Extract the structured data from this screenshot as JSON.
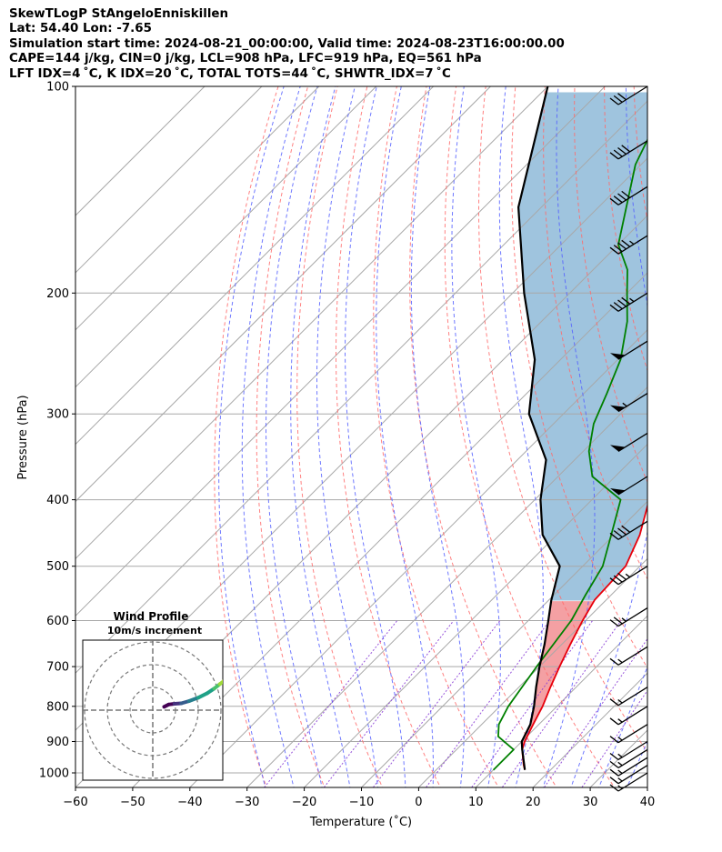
{
  "header": {
    "line1": "SkewTLogP StAngeloEnniskillen",
    "line2": "Lat: 54.40   Lon: -7.65",
    "line3": "Simulation start time: 2024-08-21_00:00:00, Valid time: 2024-08-23T16:00:00.00",
    "line4": "CAPE=144 j/kg, CIN=0 j/kg, LCL=908 hPa, LFC=919 hPa, EQ=561 hPa",
    "line5": "LFT IDX=4 ˚C, K IDX=20 ˚C, TOTAL TOTS=44 ˚C, SHWTR_IDX=7 ˚C"
  },
  "chart_data": {
    "type": "line",
    "chart_kind": "skew-T log-P diagram",
    "xlabel": "Temperature (˚C)",
    "ylabel": "Pressure (hPa)",
    "xlim": [
      -60,
      40
    ],
    "ylim": [
      1050,
      100
    ],
    "y_scale": "log",
    "x_ticks": [
      "−60",
      "−50",
      "−40",
      "−30",
      "−20",
      "−10",
      "0",
      "10",
      "20",
      "30",
      "40"
    ],
    "x_tick_values": [
      -60,
      -50,
      -40,
      -30,
      -20,
      -10,
      0,
      10,
      20,
      30,
      40
    ],
    "y_ticks": [
      1000,
      900,
      800,
      700,
      600,
      500,
      400,
      300,
      200,
      100
    ],
    "skew": 45,
    "grid": true,
    "colors": {
      "temperature": "#e8000b",
      "dewpoint": "#008000",
      "parcel": "#000000",
      "cape_fill": "#9fc4de",
      "cin_fill": "#f4a0a3",
      "dry_adiabat": "#ff6b6b",
      "moist_adiabat": "#5560ff",
      "mixing_ratio": "#8b3fd6",
      "isotherm": "#a8a8a8"
    },
    "series": [
      {
        "role": "temperature",
        "points": [
          [
            15.5,
            990
          ],
          [
            14.5,
            975
          ],
          [
            13.0,
            950
          ],
          [
            11.5,
            925
          ],
          [
            10.5,
            900
          ],
          [
            9.0,
            850
          ],
          [
            7.5,
            800
          ],
          [
            5.5,
            750
          ],
          [
            3.5,
            700
          ],
          [
            1.5,
            650
          ],
          [
            -0.5,
            600
          ],
          [
            -2.0,
            560
          ],
          [
            -2.5,
            500
          ],
          [
            -5.5,
            450
          ],
          [
            -10.0,
            400
          ],
          [
            -15.5,
            350
          ],
          [
            -21.0,
            300
          ],
          [
            -28.5,
            250
          ],
          [
            -36.0,
            210
          ],
          [
            -40.0,
            200
          ],
          [
            -44.0,
            185
          ],
          [
            -48.0,
            170
          ],
          [
            -53.0,
            150
          ],
          [
            -58.0,
            130
          ],
          [
            -63.0,
            115
          ],
          [
            -66.0,
            100
          ]
        ]
      },
      {
        "role": "dewpoint",
        "points": [
          [
            10.0,
            990
          ],
          [
            10.0,
            975
          ],
          [
            10.0,
            925
          ],
          [
            5.0,
            885
          ],
          [
            3.0,
            850
          ],
          [
            1.5,
            800
          ],
          [
            -0.5,
            700
          ],
          [
            -2.5,
            600
          ],
          [
            -4.5,
            550
          ],
          [
            -6.5,
            500
          ],
          [
            -10.5,
            450
          ],
          [
            -15.0,
            400
          ],
          [
            -24.0,
            370
          ],
          [
            -29.0,
            340
          ],
          [
            -33.0,
            310
          ],
          [
            -36.0,
            280
          ],
          [
            -39.5,
            250
          ],
          [
            -45.0,
            220
          ],
          [
            -50.0,
            200
          ],
          [
            -54.0,
            185
          ],
          [
            -60.0,
            170
          ],
          [
            -71.0,
            130
          ],
          [
            -78.0,
            100
          ]
        ]
      },
      {
        "role": "parcel",
        "points": [
          [
            15.5,
            990
          ],
          [
            11.5,
            925
          ],
          [
            10.0,
            900
          ],
          [
            8.5,
            850
          ],
          [
            6.0,
            800
          ],
          [
            3.0,
            750
          ],
          [
            0.0,
            700
          ],
          [
            -3.0,
            650
          ],
          [
            -6.5,
            600
          ],
          [
            -9.5,
            561
          ],
          [
            -14.0,
            500
          ],
          [
            -22.5,
            450
          ],
          [
            -29.0,
            400
          ],
          [
            -35.0,
            350
          ],
          [
            -46.0,
            300
          ],
          [
            -54.5,
            250
          ],
          [
            -68.0,
            200
          ],
          [
            -84.0,
            150
          ],
          [
            -100.0,
            100
          ]
        ]
      }
    ],
    "wind_barbs": [
      {
        "pressure": 100,
        "flags": 0,
        "full": 3,
        "half": 0
      },
      {
        "pressure": 120,
        "flags": 0,
        "full": 4,
        "half": 0
      },
      {
        "pressure": 140,
        "flags": 0,
        "full": 4,
        "half": 0
      },
      {
        "pressure": 165,
        "flags": 0,
        "full": 4,
        "half": 1
      },
      {
        "pressure": 200,
        "flags": 0,
        "full": 4,
        "half": 1
      },
      {
        "pressure": 235,
        "flags": 1,
        "full": 0,
        "half": 0
      },
      {
        "pressure": 280,
        "flags": 1,
        "full": 0,
        "half": 1
      },
      {
        "pressure": 320,
        "flags": 1,
        "full": 0,
        "half": 0
      },
      {
        "pressure": 370,
        "flags": 1,
        "full": 0,
        "half": 0
      },
      {
        "pressure": 430,
        "flags": 0,
        "full": 4,
        "half": 0
      },
      {
        "pressure": 500,
        "flags": 0,
        "full": 3,
        "half": 1
      },
      {
        "pressure": 575,
        "flags": 0,
        "full": 2,
        "half": 1
      },
      {
        "pressure": 655,
        "flags": 0,
        "full": 1,
        "half": 1
      },
      {
        "pressure": 750,
        "flags": 0,
        "full": 1,
        "half": 1
      },
      {
        "pressure": 800,
        "flags": 0,
        "full": 1,
        "half": 1
      },
      {
        "pressure": 850,
        "flags": 0,
        "full": 1,
        "half": 1
      },
      {
        "pressure": 900,
        "flags": 0,
        "full": 1,
        "half": 1
      },
      {
        "pressure": 925,
        "flags": 0,
        "full": 1,
        "half": 1
      },
      {
        "pressure": 950,
        "flags": 0,
        "full": 1,
        "half": 1
      },
      {
        "pressure": 975,
        "flags": 0,
        "full": 1,
        "half": 1
      },
      {
        "pressure": 1000,
        "flags": 0,
        "full": 1,
        "half": 1
      }
    ],
    "hodograph": {
      "title": "Wind Profile",
      "subtitle": "10m/s increment",
      "rings_ms": [
        10,
        20,
        30
      ],
      "trace_uv": [
        [
          5.0,
          1.5
        ],
        [
          7.0,
          2.5
        ],
        [
          9.5,
          2.8
        ],
        [
          12.5,
          3.0
        ],
        [
          16.0,
          4.0
        ],
        [
          20.0,
          5.5
        ],
        [
          24.0,
          7.5
        ],
        [
          27.0,
          9.5
        ],
        [
          29.5,
          11.5
        ],
        [
          31.5,
          13.0
        ],
        [
          33.5,
          14.5
        ]
      ],
      "trace_colors": [
        "#440154",
        "#46327e",
        "#365c8d",
        "#277f8e",
        "#1fa187",
        "#4ac16d",
        "#a0da39",
        "#fde725"
      ]
    }
  }
}
